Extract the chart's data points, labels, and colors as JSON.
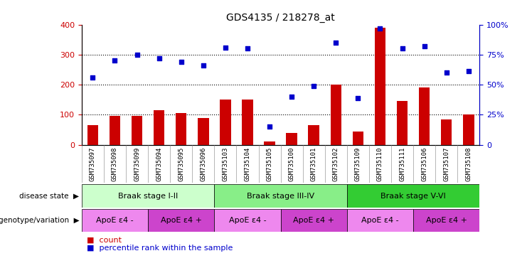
{
  "title": "GDS4135 / 218278_at",
  "samples": [
    "GSM735097",
    "GSM735098",
    "GSM735099",
    "GSM735094",
    "GSM735095",
    "GSM735096",
    "GSM735103",
    "GSM735104",
    "GSM735105",
    "GSM735100",
    "GSM735101",
    "GSM735102",
    "GSM735109",
    "GSM735110",
    "GSM735111",
    "GSM735106",
    "GSM735107",
    "GSM735108"
  ],
  "counts": [
    65,
    97,
    95,
    115,
    105,
    90,
    150,
    150,
    10,
    40,
    65,
    200,
    45,
    390,
    145,
    190,
    85,
    100
  ],
  "percentiles": [
    56,
    70,
    75,
    72,
    69,
    66,
    81,
    80,
    15,
    40,
    49,
    85,
    39,
    97,
    80,
    82,
    60,
    61
  ],
  "ylim_left": [
    0,
    400
  ],
  "ylim_right": [
    0,
    100
  ],
  "yticks_left": [
    0,
    100,
    200,
    300,
    400
  ],
  "yticks_right": [
    0,
    25,
    50,
    75,
    100
  ],
  "bar_color": "#cc0000",
  "scatter_color": "#0000cc",
  "disease_states": [
    {
      "label": "Braak stage I-II",
      "start": 0,
      "end": 6,
      "color": "#ccffcc"
    },
    {
      "label": "Braak stage III-IV",
      "start": 6,
      "end": 12,
      "color": "#88ee88"
    },
    {
      "label": "Braak stage V-VI",
      "start": 12,
      "end": 18,
      "color": "#33cc33"
    }
  ],
  "genotypes": [
    {
      "label": "ApoE ε4 -",
      "start": 0,
      "end": 3,
      "color": "#ee88ee"
    },
    {
      "label": "ApoE ε4 +",
      "start": 3,
      "end": 6,
      "color": "#cc44cc"
    },
    {
      "label": "ApoE ε4 -",
      "start": 6,
      "end": 9,
      "color": "#ee88ee"
    },
    {
      "label": "ApoE ε4 +",
      "start": 9,
      "end": 12,
      "color": "#cc44cc"
    },
    {
      "label": "ApoE ε4 -",
      "start": 12,
      "end": 15,
      "color": "#ee88ee"
    },
    {
      "label": "ApoE ε4 +",
      "start": 15,
      "end": 18,
      "color": "#cc44cc"
    }
  ],
  "title_fontsize": 10,
  "bar_width": 0.5
}
